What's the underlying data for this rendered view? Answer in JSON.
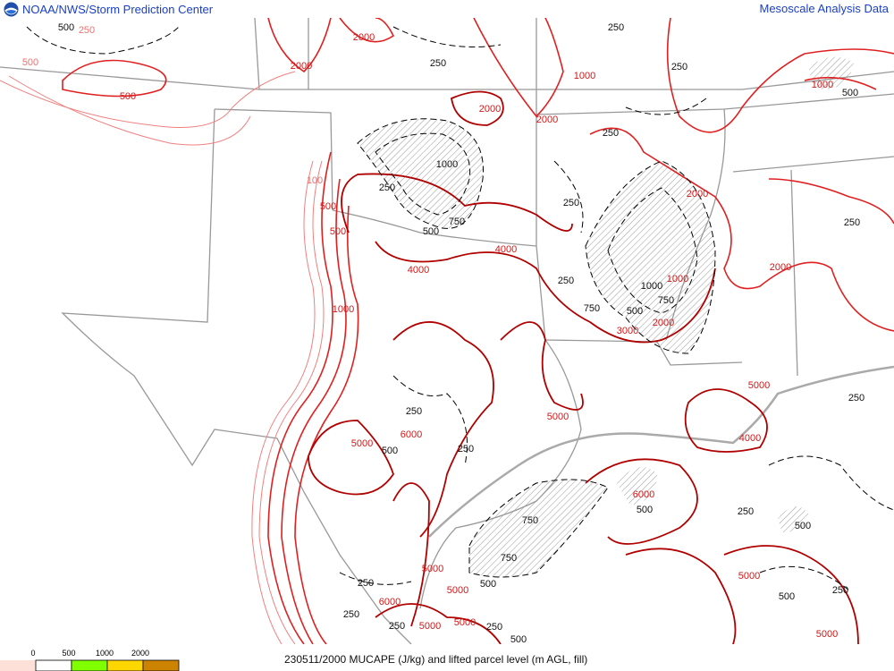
{
  "header": {
    "left_title": "NOAA/NWS/Storm Prediction Center",
    "right_title": "Mesoscale Analysis Data",
    "logo_icon": "noaa-logo"
  },
  "footer": {
    "caption": "230511/2000 MUCAPE (J/kg) and lifted parcel level (m AGL, fill)"
  },
  "legend": {
    "ticks": [
      "0",
      "500",
      "1000",
      "2000"
    ],
    "colors": [
      "#fde0d8",
      "#ffffff",
      "#80ff00",
      "#ffd700",
      "#cc8400"
    ]
  },
  "colors": {
    "cape_high": "#b00000",
    "cape_mid": "#e02020",
    "cape_low": "#f08080",
    "lpl_dashed": "#000000",
    "borders": "#999999"
  },
  "map": {
    "cape_labels": [
      "250",
      "500",
      "2000",
      "2000",
      "500",
      "1000",
      "2000",
      "2000",
      "1000",
      "500",
      "100",
      "500",
      "1000",
      "4000",
      "4000",
      "2000",
      "1000",
      "3000",
      "2000",
      "2000",
      "5000",
      "5000",
      "6000",
      "5000",
      "4000",
      "6000",
      "5000",
      "5000",
      "6000",
      "5000",
      "5000",
      "5000",
      "5000"
    ],
    "lpl_labels": [
      "500",
      "250",
      "250",
      "250",
      "250",
      "1000",
      "250",
      "750",
      "500",
      "250",
      "250",
      "1000",
      "750",
      "500",
      "750",
      "250",
      "500",
      "250",
      "250",
      "750",
      "750",
      "500",
      "500",
      "250",
      "250",
      "250",
      "500",
      "250",
      "250",
      "500",
      "250",
      "500",
      "250",
      "500"
    ]
  }
}
